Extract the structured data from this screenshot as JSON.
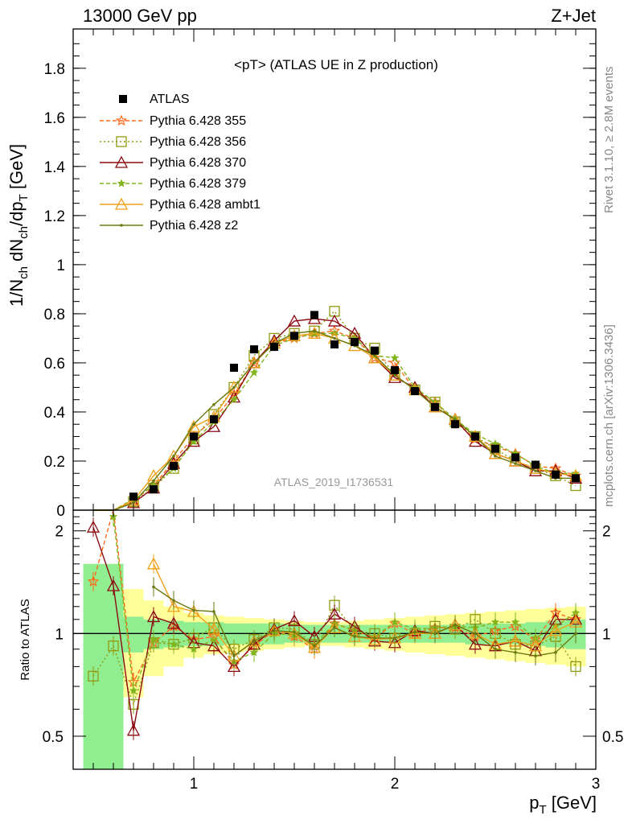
{
  "header": {
    "left": "13000 GeV pp",
    "right": "Z+Jet"
  },
  "side_labels": {
    "rivet": "Rivet 3.1.10, ≥ 2.8M events",
    "mcplots": "mcplots.cern.ch [arXiv:1306.3436]"
  },
  "chart_data": {
    "type": "line",
    "title": "<pT> (ATLAS UE in Z production)",
    "analysis_tag": "ATLAS_2019_I1736531",
    "xlabel": "p_T [GeV]",
    "ylabel": "1/N_ch dN_ch/dp_T [GeV]",
    "ratio_ylabel": "Ratio to ATLAS",
    "xlim": [
      0.4,
      3.0
    ],
    "ylim": [
      0,
      1.96
    ],
    "ratio_ylim": [
      0.4,
      2.3
    ],
    "ratio_scale": "log",
    "grid": false,
    "legend_position": "top-left",
    "x_ticks": [
      "1",
      "2",
      "3"
    ],
    "y_ticks": [
      "0",
      "0.2",
      "0.4",
      "0.6",
      "0.8",
      "1",
      "1.2",
      "1.4",
      "1.6",
      "1.8"
    ],
    "ratio_ticks": [
      "0.5",
      "1",
      "2"
    ],
    "x": [
      0.5,
      0.6,
      0.7,
      0.8,
      0.9,
      1.0,
      1.1,
      1.2,
      1.3,
      1.4,
      1.5,
      1.6,
      1.7,
      1.8,
      1.9,
      2.0,
      2.1,
      2.2,
      2.3,
      2.4,
      2.5,
      2.6,
      2.7,
      2.8,
      2.9
    ],
    "data": {
      "name": "ATLAS",
      "values": [
        0.0,
        0.0,
        0.055,
        0.085,
        0.18,
        0.3,
        0.37,
        0.58,
        0.655,
        0.665,
        0.71,
        0.795,
        0.675,
        0.685,
        0.65,
        0.57,
        0.485,
        0.42,
        0.35,
        0.3,
        0.25,
        0.215,
        0.185,
        0.145,
        0.13
      ],
      "ratio_band_inner": [
        0.6,
        0.6,
        0.12,
        0.1,
        0.09,
        0.08,
        0.08,
        0.07,
        0.07,
        0.07,
        0.06,
        0.06,
        0.06,
        0.06,
        0.06,
        0.06,
        0.06,
        0.06,
        0.06,
        0.07,
        0.07,
        0.07,
        0.08,
        0.09,
        0.1
      ],
      "ratio_band_outer": [
        0.6,
        0.6,
        0.35,
        0.25,
        0.2,
        0.15,
        0.13,
        0.12,
        0.11,
        0.1,
        0.09,
        0.08,
        0.08,
        0.09,
        0.1,
        0.11,
        0.12,
        0.13,
        0.14,
        0.15,
        0.16,
        0.17,
        0.18,
        0.19,
        0.2
      ]
    },
    "series": [
      {
        "name": "Pythia 6.428 355",
        "color": "#ff6a1a",
        "dash": "5,3",
        "marker": "star",
        "values": [
          0.0,
          0.0,
          0.04,
          0.1,
          0.2,
          0.3,
          0.37,
          0.47,
          0.6,
          0.68,
          0.7,
          0.72,
          0.73,
          0.7,
          0.62,
          0.6,
          0.49,
          0.44,
          0.36,
          0.29,
          0.26,
          0.23,
          0.18,
          0.17,
          0.14
        ]
      },
      {
        "name": "Pythia 6.428 356",
        "color": "#8f9a10",
        "dash": "2,3",
        "marker": "square",
        "values": [
          0.0,
          0.0,
          0.035,
          0.09,
          0.17,
          0.29,
          0.39,
          0.5,
          0.63,
          0.7,
          0.72,
          0.73,
          0.81,
          0.7,
          0.66,
          0.55,
          0.49,
          0.44,
          0.36,
          0.3,
          0.25,
          0.2,
          0.17,
          0.14,
          0.1
        ]
      },
      {
        "name": "Pythia 6.428 370",
        "color": "#8b0a12",
        "dash": "",
        "marker": "triangle",
        "values": [
          0.0,
          0.0,
          0.03,
          0.09,
          0.19,
          0.28,
          0.34,
          0.46,
          0.6,
          0.69,
          0.77,
          0.78,
          0.77,
          0.72,
          0.62,
          0.54,
          0.5,
          0.42,
          0.37,
          0.28,
          0.23,
          0.2,
          0.16,
          0.16,
          0.13
        ]
      },
      {
        "name": "Pythia 6.428 379",
        "color": "#82b41e",
        "dash": "5,3",
        "marker": "smallstar",
        "values": [
          0.0,
          0.0,
          0.045,
          0.1,
          0.17,
          0.28,
          0.36,
          0.45,
          0.56,
          0.67,
          0.7,
          0.72,
          0.72,
          0.7,
          0.63,
          0.62,
          0.5,
          0.44,
          0.37,
          0.31,
          0.27,
          0.23,
          0.18,
          0.15,
          0.15
        ]
      },
      {
        "name": "Pythia 6.428 ambt1",
        "color": "#f0a018",
        "dash": "",
        "marker": "triangle",
        "values": [
          0.0,
          0.0,
          0.04,
          0.14,
          0.22,
          0.34,
          0.38,
          0.5,
          0.6,
          0.68,
          0.71,
          0.72,
          0.7,
          0.67,
          0.62,
          0.55,
          0.49,
          0.42,
          0.37,
          0.3,
          0.23,
          0.2,
          0.17,
          0.15,
          0.14
        ]
      },
      {
        "name": "Pythia 6.428 z2",
        "color": "#6b7a10",
        "dash": "",
        "marker": "dot",
        "values": [
          0.0,
          0.0,
          0.03,
          0.12,
          0.22,
          0.35,
          0.43,
          0.5,
          0.6,
          0.68,
          0.72,
          0.73,
          0.7,
          0.67,
          0.63,
          0.55,
          0.49,
          0.42,
          0.37,
          0.3,
          0.22,
          0.19,
          0.16,
          0.13,
          0.13
        ]
      }
    ],
    "ratio_series": [
      [
        1.42,
        2.3,
        0.72,
        0.94,
        1.05,
        0.96,
        0.98,
        0.81,
        0.92,
        1.02,
        0.98,
        0.9,
        1.07,
        1.02,
        0.97,
        1.07,
        1.0,
        1.04,
        1.04,
        0.98,
        1.02,
        1.05,
        0.96,
        1.15,
        1.1
      ],
      [
        0.75,
        0.92,
        0.62,
        0.94,
        0.93,
        0.97,
        1.04,
        0.9,
        0.96,
        1.04,
        1.03,
        0.93,
        1.21,
        1.02,
        1.0,
        0.97,
        1.0,
        1.05,
        1.03,
        1.1,
        1.0,
        0.93,
        0.92,
        0.98,
        0.8
      ],
      [
        2.05,
        1.38,
        0.52,
        1.12,
        1.07,
        0.94,
        0.92,
        0.8,
        0.93,
        1.03,
        1.09,
        0.98,
        1.14,
        1.05,
        0.95,
        0.94,
        1.02,
        1.0,
        1.06,
        0.93,
        0.92,
        0.95,
        0.89,
        1.1,
        1.1
      ],
      [
        0.0,
        2.2,
        0.68,
        0.96,
        0.93,
        0.9,
        0.96,
        0.83,
        0.88,
        1.0,
        0.99,
        0.93,
        1.07,
        1.02,
        0.98,
        1.08,
        1.03,
        1.04,
        1.05,
        1.04,
        1.08,
        1.08,
        0.97,
        1.05,
        1.15
      ],
      [
        0.0,
        0.0,
        0.0,
        1.6,
        1.2,
        1.16,
        1.03,
        0.86,
        0.95,
        1.02,
        1.0,
        0.91,
        1.04,
        0.98,
        0.96,
        0.97,
        1.0,
        1.0,
        1.06,
        1.0,
        0.93,
        0.95,
        0.92,
        1.02,
        1.08
      ],
      [
        0.0,
        0.0,
        0.0,
        1.37,
        1.25,
        1.17,
        1.16,
        0.86,
        0.95,
        1.02,
        1.01,
        0.92,
        1.04,
        0.98,
        0.97,
        0.97,
        1.01,
        1.0,
        1.06,
        1.0,
        0.9,
        0.88,
        0.86,
        0.88,
        1.0
      ]
    ]
  }
}
